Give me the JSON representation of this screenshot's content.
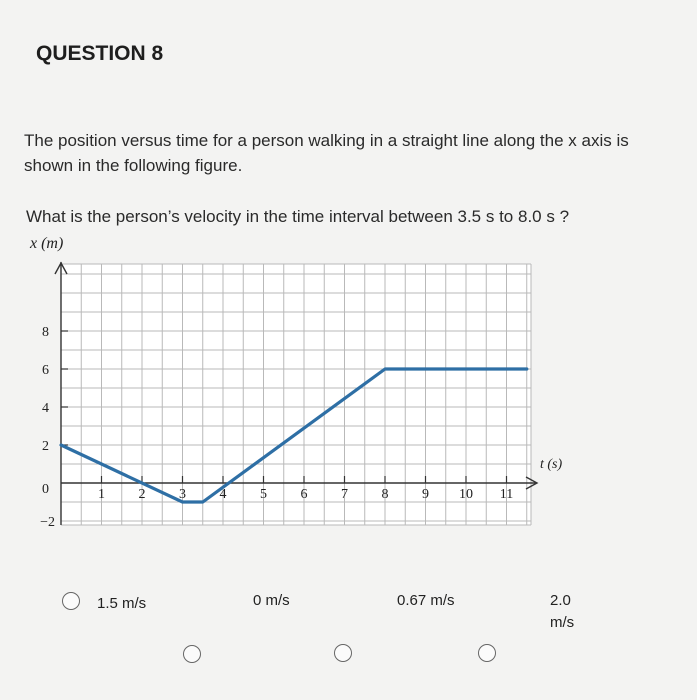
{
  "question": {
    "title": "QUESTION 8",
    "prompt": "The position versus time for a person walking in a straight line along the x axis is shown in the following figure.",
    "subquestion": "What is the person’s velocity in the time interval between 3.5 s to 8.0 s ?"
  },
  "options": [
    {
      "label": "1.5 m/s"
    },
    {
      "label": "0 m/s"
    },
    {
      "label": "0.67 m/s"
    },
    {
      "label_line1": "2.0",
      "label_line2": "m/s"
    }
  ],
  "chart_data": {
    "type": "line",
    "ylabel": "x (m)",
    "xlabel": "t (s)",
    "x_ticks": [
      "1",
      "2",
      "3",
      "4",
      "5",
      "6",
      "7",
      "8",
      "9",
      "10",
      "11"
    ],
    "y_ticks_positive": [
      "2",
      "4",
      "6",
      "8"
    ],
    "y_tick_zero": "0",
    "y_tick_negative": "−2",
    "xlim": [
      0,
      11
    ],
    "ylim": [
      -2,
      9
    ],
    "grid": true,
    "series": [
      {
        "color": "#2e6fa5",
        "points": [
          [
            0,
            2
          ],
          [
            3,
            -1
          ],
          [
            3.5,
            -1
          ],
          [
            8,
            6
          ],
          [
            11.5,
            6
          ]
        ]
      }
    ]
  }
}
